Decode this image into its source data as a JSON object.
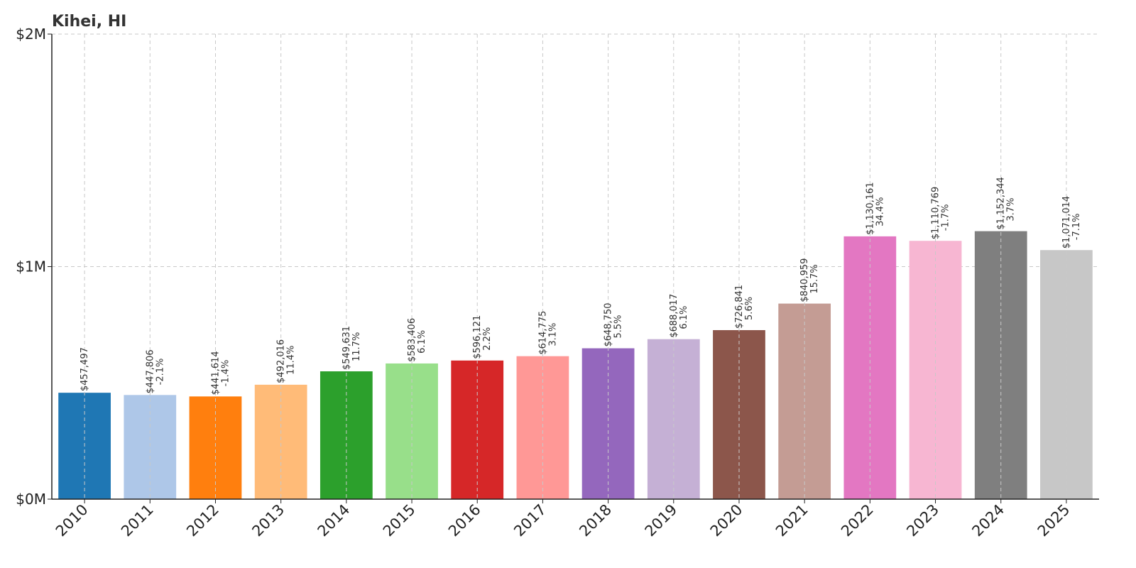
{
  "chart_data": {
    "type": "bar",
    "title": "Kihei, HI",
    "xlabel": "",
    "ylabel": "",
    "categories": [
      "2010",
      "2011",
      "2012",
      "2013",
      "2014",
      "2015",
      "2016",
      "2017",
      "2018",
      "2019",
      "2020",
      "2021",
      "2022",
      "2023",
      "2024",
      "2025"
    ],
    "values": [
      457497,
      447806,
      441614,
      492016,
      549631,
      583406,
      596121,
      614775,
      648750,
      688017,
      726841,
      840959,
      1130161,
      1110769,
      1152344,
      1071014
    ],
    "value_labels": [
      "$457,497",
      "$447,806",
      "$441,614",
      "$492,016",
      "$549,631",
      "$583,406",
      "$596,121",
      "$614,775",
      "$648,750",
      "$688,017",
      "$726,841",
      "$840,959",
      "$1,130,161",
      "$1,110,769",
      "$1,152,344",
      "$1,071,014"
    ],
    "change_labels": [
      "",
      "-2.1%",
      "-1.4%",
      "11.4%",
      "11.7%",
      "6.1%",
      "2.2%",
      "3.1%",
      "5.5%",
      "6.1%",
      "5.6%",
      "15.7%",
      "34.4%",
      "-1.7%",
      "3.7%",
      "-7.1%"
    ],
    "colors": [
      "#1f77b4",
      "#aec7e8",
      "#ff7f0e",
      "#ffbb78",
      "#2ca02c",
      "#98df8a",
      "#d62728",
      "#ff9896",
      "#9467bd",
      "#c5b0d5",
      "#8c564b",
      "#c49c94",
      "#e377c2",
      "#f7b6d2",
      "#7f7f7f",
      "#c7c7c7"
    ],
    "ylim": [
      0,
      2000000
    ],
    "y_ticks": [
      0,
      1000000,
      2000000
    ],
    "y_tick_labels": [
      "$0M",
      "$1M",
      "$2M"
    ],
    "grid": true,
    "legend": "none"
  }
}
